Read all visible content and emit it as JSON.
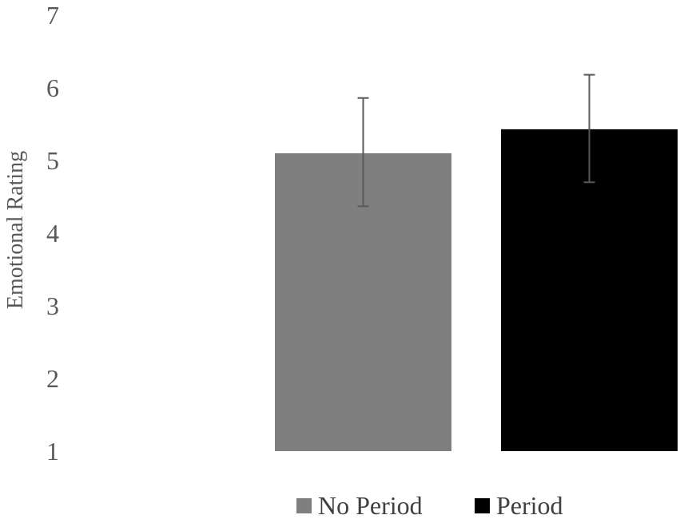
{
  "chart_data": {
    "type": "bar",
    "ylabel": "Emotional Rating",
    "xlabel": "",
    "title": "",
    "ylim": [
      1,
      7
    ],
    "yticks": [
      "1",
      "2",
      "3",
      "4",
      "5",
      "6",
      "7"
    ],
    "grid": false,
    "legend_position": "bottom",
    "series": [
      {
        "name": "No Period",
        "value": 5.1,
        "error_low": 4.37,
        "error_high": 5.86,
        "color": "#7f7f7f"
      },
      {
        "name": "Period",
        "value": 5.43,
        "error_low": 4.7,
        "error_high": 6.18,
        "color": "#000000"
      }
    ]
  }
}
